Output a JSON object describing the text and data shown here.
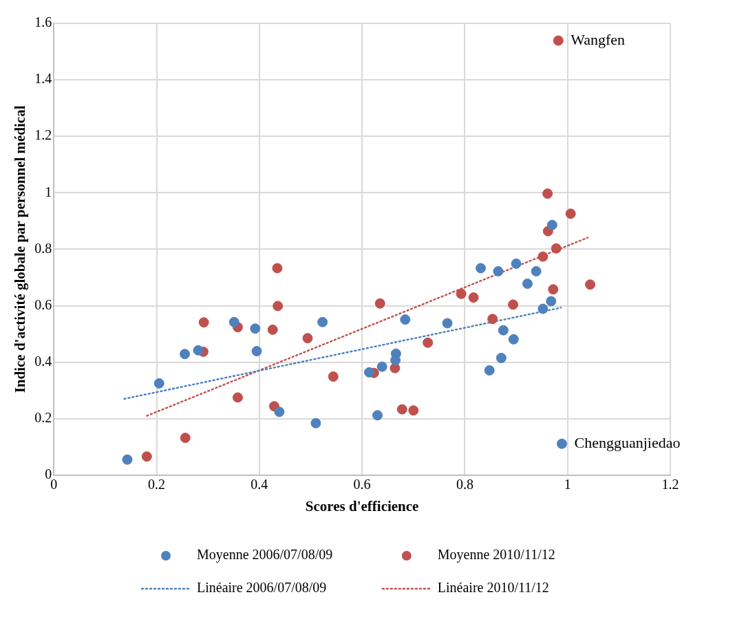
{
  "chart_data": {
    "type": "scatter",
    "xlabel": "Scores d'efficience",
    "ylabel": "Indice d'activité globale par personnel médical",
    "xlim": [
      0,
      1.2
    ],
    "xticks": [
      0,
      0.2,
      0.4,
      0.6,
      0.8,
      1,
      1.2
    ],
    "ylim": [
      0,
      1.6
    ],
    "yticks": [
      0,
      0.2,
      0.4,
      0.6,
      0.8,
      1,
      1.2,
      1.4,
      1.6
    ],
    "grid": true,
    "legend": "bottom",
    "marker": "circle",
    "series": [
      {
        "name": "Moyenne 2006/07/08/09",
        "color": "#4f81bd",
        "x": [
          0.143,
          0.205,
          0.255,
          0.281,
          0.351,
          0.392,
          0.395,
          0.439,
          0.523,
          0.51,
          0.614,
          0.639,
          0.666,
          0.665,
          0.684,
          0.766,
          0.63,
          0.831,
          0.865,
          0.9,
          0.939,
          0.922,
          0.875,
          0.895,
          0.848,
          0.871,
          0.952,
          0.968,
          0.97,
          0.989
        ],
        "values": [
          0.055,
          0.325,
          0.429,
          0.442,
          0.542,
          0.519,
          0.439,
          0.224,
          0.542,
          0.184,
          0.364,
          0.384,
          0.43,
          0.407,
          0.551,
          0.538,
          0.212,
          0.733,
          0.722,
          0.749,
          0.722,
          0.678,
          0.513,
          0.481,
          0.371,
          0.415,
          0.589,
          0.616,
          0.886,
          0.111
        ]
      },
      {
        "name": "Moyenne 2010/11/12",
        "color": "#c0504d",
        "x": [
          0.181,
          0.256,
          0.292,
          0.291,
          0.358,
          0.358,
          0.426,
          0.429,
          0.435,
          0.436,
          0.494,
          0.544,
          0.623,
          0.664,
          0.635,
          0.728,
          0.678,
          0.7,
          0.793,
          0.817,
          0.854,
          0.894,
          0.972,
          1.044,
          0.952,
          0.978,
          0.962,
          0.961,
          1.006,
          0.982
        ],
        "values": [
          0.066,
          0.132,
          0.541,
          0.437,
          0.524,
          0.275,
          0.515,
          0.244,
          0.733,
          0.599,
          0.485,
          0.349,
          0.362,
          0.379,
          0.608,
          0.469,
          0.233,
          0.229,
          0.642,
          0.629,
          0.553,
          0.604,
          0.658,
          0.675,
          0.774,
          0.803,
          0.864,
          0.997,
          0.926,
          1.539
        ]
      },
      {
        "name": "Linéaire 2006/07/08/09",
        "type": "line",
        "color": "#4f81bd",
        "marker": "none",
        "line_style": "dotted",
        "x": [
          0.137,
          0.987
        ],
        "values": [
          0.27,
          0.593
        ]
      },
      {
        "name": "Linéaire 2010/11/12",
        "type": "line",
        "color": "#c0504d",
        "marker": "none",
        "line_style": "dotted",
        "x": [
          0.181,
          1.039
        ],
        "values": [
          0.21,
          0.841
        ]
      }
    ],
    "annotations": [
      {
        "text": "Wangfen",
        "x": 0.982,
        "y": 1.539
      },
      {
        "text": "Chengguanjiedao",
        "x": 0.989,
        "y": 0.111
      }
    ]
  }
}
